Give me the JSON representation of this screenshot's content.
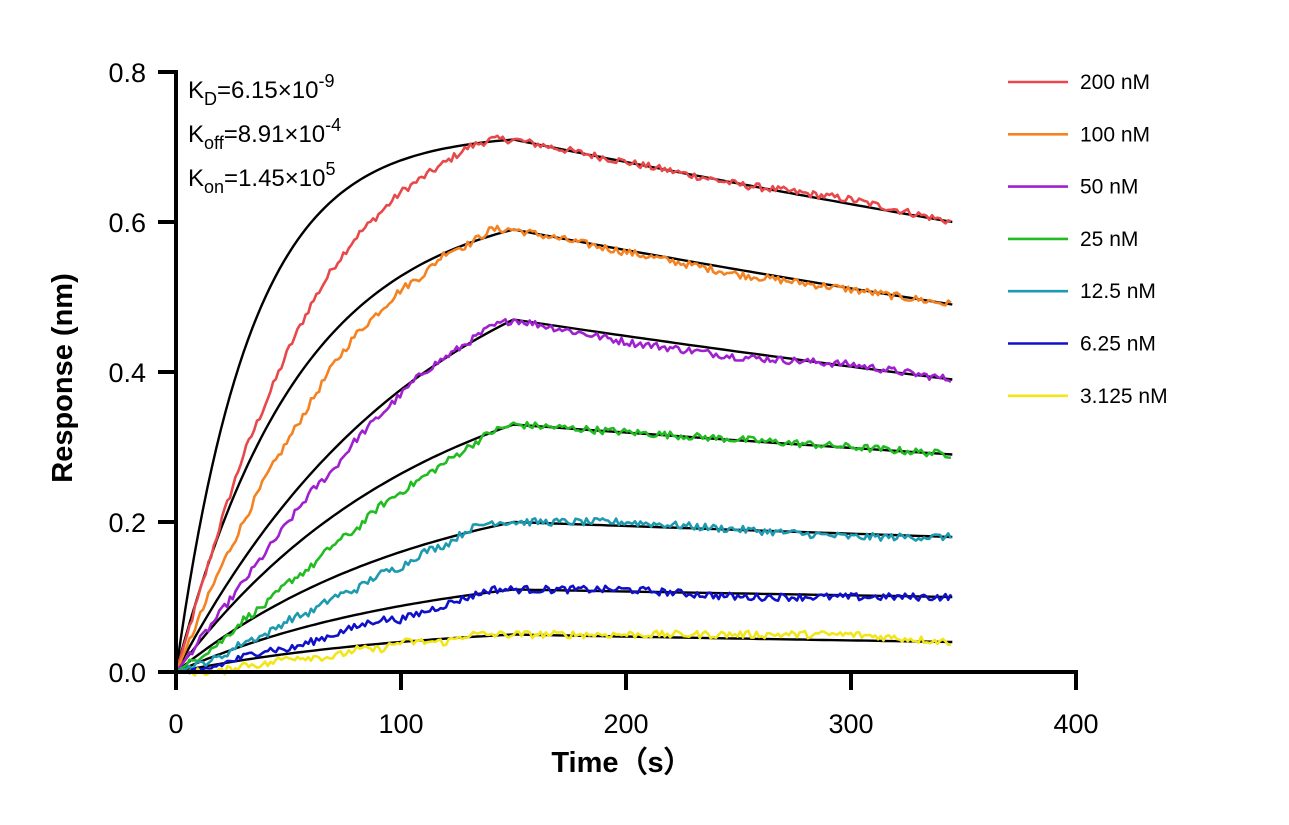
{
  "chart_data": {
    "type": "line",
    "xlabel": "Time（s）",
    "ylabel": "Response (nm)",
    "xlim": [
      0,
      400
    ],
    "ylim": [
      0,
      0.8
    ],
    "x_ticks": [
      0,
      100,
      200,
      300,
      400
    ],
    "x_tick_labels": [
      "0",
      "100",
      "200",
      "300",
      "400"
    ],
    "y_ticks": [
      0,
      0.2,
      0.4,
      0.6,
      0.8
    ],
    "y_tick_labels": [
      "0.0",
      "0.2",
      "0.4",
      "0.6",
      "0.8"
    ],
    "grid": false,
    "legend_position": "right",
    "association_end": 150,
    "experiment_end": 345,
    "kinetics": [
      {
        "base": "K",
        "sub": "D",
        "value": "6.15×10",
        "exp": "-9"
      },
      {
        "base": "K",
        "sub": "off",
        "value": "8.91×10",
        "exp": "-4"
      },
      {
        "base": "K",
        "sub": "on",
        "value": "1.45×10",
        "exp": "5"
      }
    ],
    "fit_color": "#000000",
    "series": [
      {
        "name": "200 nM",
        "color": "#e8484a",
        "x": [
          0,
          10,
          20,
          30,
          40,
          50,
          60,
          70,
          80,
          90,
          100,
          110,
          120,
          130,
          140,
          150,
          200,
          250,
          300,
          345
        ],
        "y": [
          0.0,
          0.1,
          0.2,
          0.29,
          0.36,
          0.43,
          0.49,
          0.54,
          0.58,
          0.61,
          0.64,
          0.66,
          0.68,
          0.7,
          0.71,
          0.71,
          0.68,
          0.65,
          0.63,
          0.6
        ]
      },
      {
        "name": "100 nM",
        "color": "#f58220",
        "x": [
          0,
          10,
          20,
          30,
          40,
          50,
          60,
          70,
          80,
          90,
          100,
          110,
          120,
          130,
          140,
          150,
          200,
          250,
          300,
          345
        ],
        "y": [
          0.0,
          0.07,
          0.14,
          0.2,
          0.26,
          0.31,
          0.36,
          0.41,
          0.45,
          0.48,
          0.51,
          0.53,
          0.56,
          0.57,
          0.59,
          0.59,
          0.56,
          0.53,
          0.51,
          0.49
        ]
      },
      {
        "name": "50 nM",
        "color": "#a020d0",
        "x": [
          0,
          10,
          20,
          30,
          40,
          50,
          60,
          70,
          80,
          90,
          100,
          110,
          120,
          130,
          140,
          150,
          200,
          250,
          300,
          345
        ],
        "y": [
          0.0,
          0.04,
          0.08,
          0.12,
          0.16,
          0.2,
          0.24,
          0.27,
          0.31,
          0.34,
          0.37,
          0.4,
          0.42,
          0.44,
          0.46,
          0.47,
          0.44,
          0.42,
          0.41,
          0.39
        ]
      },
      {
        "name": "25 nM",
        "color": "#22bb22",
        "x": [
          0,
          10,
          20,
          30,
          40,
          50,
          60,
          70,
          80,
          90,
          100,
          110,
          120,
          130,
          140,
          150,
          200,
          250,
          300,
          345
        ],
        "y": [
          0.0,
          0.02,
          0.04,
          0.07,
          0.09,
          0.12,
          0.14,
          0.17,
          0.19,
          0.22,
          0.24,
          0.26,
          0.28,
          0.3,
          0.32,
          0.33,
          0.32,
          0.31,
          0.3,
          0.29
        ]
      },
      {
        "name": "12.5 nM",
        "color": "#1e9ab0",
        "x": [
          0,
          10,
          20,
          30,
          40,
          50,
          60,
          70,
          80,
          90,
          100,
          110,
          120,
          130,
          140,
          150,
          200,
          250,
          300,
          345
        ],
        "y": [
          0.0,
          0.01,
          0.02,
          0.04,
          0.05,
          0.07,
          0.08,
          0.1,
          0.11,
          0.13,
          0.14,
          0.16,
          0.17,
          0.19,
          0.2,
          0.2,
          0.2,
          0.19,
          0.18,
          0.18
        ]
      },
      {
        "name": "6.25 nM",
        "color": "#1010c8",
        "x": [
          0,
          10,
          20,
          30,
          40,
          50,
          60,
          70,
          80,
          90,
          100,
          110,
          120,
          130,
          140,
          150,
          200,
          250,
          300,
          345
        ],
        "y": [
          0.0,
          0.0,
          0.01,
          0.02,
          0.03,
          0.03,
          0.04,
          0.05,
          0.06,
          0.07,
          0.07,
          0.08,
          0.09,
          0.1,
          0.11,
          0.11,
          0.11,
          0.1,
          0.1,
          0.1
        ]
      },
      {
        "name": "3.125 nM",
        "color": "#f2e61a",
        "x": [
          0,
          10,
          20,
          30,
          40,
          50,
          60,
          70,
          80,
          90,
          100,
          110,
          120,
          130,
          140,
          150,
          200,
          250,
          300,
          345
        ],
        "y": [
          0.0,
          0.0,
          0.0,
          0.01,
          0.01,
          0.02,
          0.02,
          0.02,
          0.03,
          0.03,
          0.04,
          0.04,
          0.04,
          0.05,
          0.05,
          0.05,
          0.05,
          0.05,
          0.05,
          0.04
        ]
      }
    ]
  }
}
